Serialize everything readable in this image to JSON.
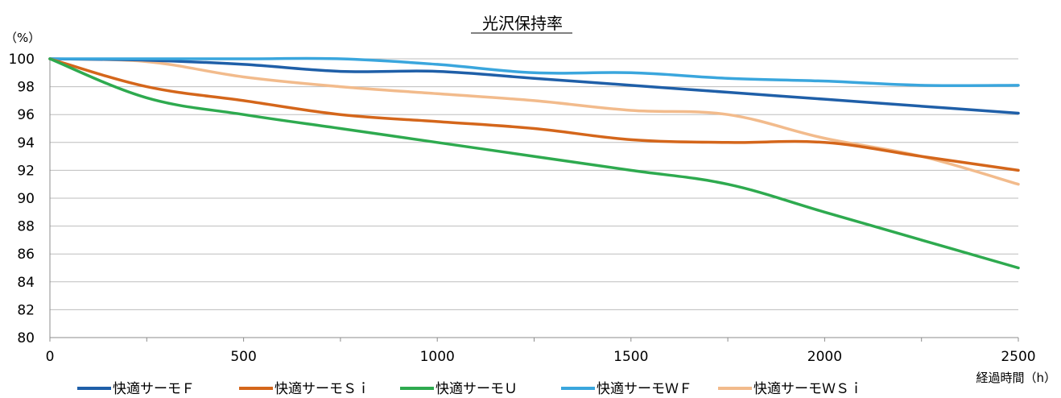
{
  "chart_data": {
    "type": "line",
    "title": "光沢保持率",
    "ylabel": "（%）",
    "xlabel": "経過時間（h）",
    "xlim": [
      0,
      2500
    ],
    "ylim": [
      80,
      100
    ],
    "xticks": [
      "0",
      "500",
      "1000",
      "1500",
      "2000",
      "2500"
    ],
    "yticks": [
      "80",
      "82",
      "84",
      "86",
      "88",
      "90",
      "92",
      "94",
      "96",
      "98",
      "100"
    ],
    "grid": true,
    "legend_position": "bottom",
    "series": [
      {
        "name": "快適サーモＦ",
        "color": "#1f5fa8",
        "x": [
          0,
          250,
          500,
          750,
          1000,
          1250,
          1500,
          1750,
          2000,
          2250,
          2500
        ],
        "y": [
          100,
          99.9,
          99.6,
          99.1,
          99.1,
          98.6,
          98.1,
          97.6,
          97.1,
          96.6,
          96.1
        ]
      },
      {
        "name": "快適サーモＳｉ",
        "color": "#d4661b",
        "x": [
          0,
          250,
          500,
          750,
          1000,
          1250,
          1500,
          1750,
          2000,
          2250,
          2500
        ],
        "y": [
          100,
          98.0,
          97.0,
          96.0,
          95.5,
          95.0,
          94.2,
          94.0,
          94.0,
          93.0,
          92.0
        ]
      },
      {
        "name": "快適サーモＵ",
        "color": "#2eaa4f",
        "x": [
          0,
          250,
          500,
          750,
          1000,
          1250,
          1500,
          1750,
          2000,
          2250,
          2500
        ],
        "y": [
          100,
          97.2,
          96.0,
          95.0,
          94.0,
          93.0,
          92.0,
          91.0,
          89.0,
          87.0,
          85.0
        ]
      },
      {
        "name": "快適サーモＷＦ",
        "color": "#3aa6dd",
        "x": [
          0,
          250,
          500,
          750,
          1000,
          1250,
          1500,
          1750,
          2000,
          2250,
          2500
        ],
        "y": [
          100,
          100,
          100,
          100,
          99.6,
          99.0,
          99.0,
          98.6,
          98.4,
          98.1,
          98.1
        ]
      },
      {
        "name": "快適サーモＷＳｉ",
        "color": "#f2bb8c",
        "x": [
          0,
          250,
          500,
          750,
          1000,
          1250,
          1500,
          1750,
          2000,
          2250,
          2500
        ],
        "y": [
          100,
          99.8,
          98.7,
          98.0,
          97.5,
          97.0,
          96.3,
          96.0,
          94.3,
          93.0,
          91.0
        ]
      }
    ]
  }
}
